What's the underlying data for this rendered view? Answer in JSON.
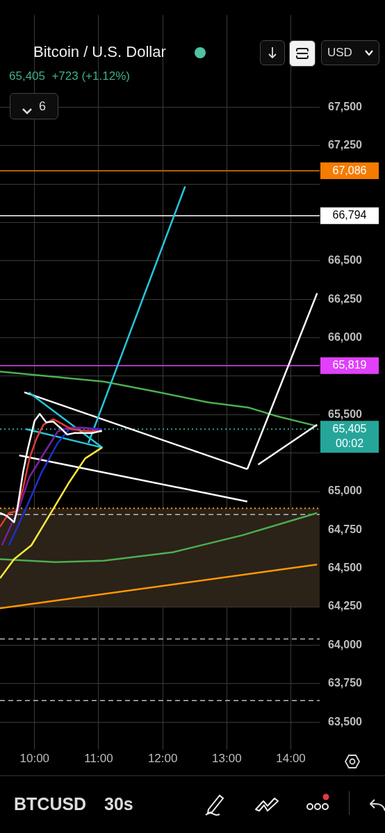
{
  "chart_data": {
    "type": "line",
    "title": "Bitcoin / U.S. Dollar",
    "subtitle": "65,405  +723 (+1.12%)",
    "xlim": [
      9.46,
      14.45
    ],
    "ylim": [
      63320,
      68100
    ],
    "xticks": [
      {
        "value": 10,
        "label": "10:00"
      },
      {
        "value": 11,
        "label": "11:00"
      },
      {
        "value": 12,
        "label": "12:00"
      },
      {
        "value": 13,
        "label": "13:00"
      },
      {
        "value": 14,
        "label": "14:00"
      }
    ],
    "yticks": [
      {
        "value": 63500,
        "label": "63,500"
      },
      {
        "value": 63750,
        "label": "63,750"
      },
      {
        "value": 64000,
        "label": "64,000"
      },
      {
        "value": 64250,
        "label": "64,250"
      },
      {
        "value": 64500,
        "label": "64,500"
      },
      {
        "value": 64750,
        "label": "64,750"
      },
      {
        "value": 65000,
        "label": "65,000"
      },
      {
        "value": 65250,
        "label": null
      },
      {
        "value": 65500,
        "label": "65,500"
      },
      {
        "value": 65750,
        "label": null
      },
      {
        "value": 66000,
        "label": "66,000"
      },
      {
        "value": 66250,
        "label": "66,250"
      },
      {
        "value": 66500,
        "label": "66,500"
      },
      {
        "value": 66750,
        "label": null
      },
      {
        "value": 67000,
        "label": null
      },
      {
        "value": 67250,
        "label": "67,250"
      },
      {
        "value": 67500,
        "label": "67,500"
      }
    ],
    "grid": true,
    "legend": false,
    "marker": "none",
    "series": [
      {
        "type": "line",
        "color": "#ffffff",
        "x": [
          9.46,
          9.57,
          9.68,
          9.73,
          9.82,
          9.89,
          10.0,
          10.08,
          10.18,
          10.29,
          10.4,
          10.51,
          10.62,
          10.76,
          10.9,
          11.05
        ],
        "values": [
          64860,
          64840,
          64800,
          64885,
          65125,
          65270,
          65460,
          65505,
          65450,
          65455,
          65415,
          65370,
          65380,
          65380,
          65380,
          65395
        ]
      },
      {
        "type": "line",
        "color": "#e53935",
        "x": [
          9.46,
          9.6,
          9.71,
          9.82,
          9.92,
          10.03,
          10.14,
          10.29,
          10.43,
          10.57,
          10.76,
          11.05
        ],
        "values": [
          64770,
          64860,
          64870,
          65020,
          65215,
          65345,
          65435,
          65470,
          65440,
          65405,
          65395,
          65390
        ]
      },
      {
        "type": "line",
        "color": "#7b1fa2",
        "x": [
          9.49,
          9.75,
          9.92,
          10.18,
          10.36,
          10.54,
          10.76,
          11.05
        ],
        "values": [
          64650,
          64885,
          65095,
          65270,
          65390,
          65415,
          65415,
          65395
        ]
      },
      {
        "type": "line",
        "color": "#1e2fd0",
        "x": [
          9.6,
          9.86,
          10.11,
          10.36,
          10.54,
          10.76,
          11.05
        ],
        "values": [
          64650,
          64885,
          65125,
          65315,
          65405,
          65415,
          65405
        ]
      },
      {
        "type": "line",
        "color": "#ffeb3b",
        "x": [
          9.46,
          9.68,
          9.95,
          10.29,
          10.54,
          10.79,
          11.05
        ],
        "values": [
          64435,
          64560,
          64650,
          64885,
          65060,
          65215,
          65285
        ]
      },
      {
        "type": "line",
        "color": "#26c6da",
        "x": [
          10.84,
          12.35
        ],
        "values": [
          65315,
          66985
        ]
      },
      {
        "type": "line",
        "color": "#26c6da",
        "x": [
          9.91,
          11.06
        ],
        "values": [
          65645,
          65285
        ]
      },
      {
        "type": "line",
        "color": "#26c6da",
        "x": [
          9.87,
          11.06
        ],
        "values": [
          65405,
          65285
        ]
      },
      {
        "type": "line",
        "color": "#ffffff",
        "x": [
          9.84,
          13.32
        ],
        "values": [
          65645,
          65145
        ]
      },
      {
        "type": "line",
        "color": "#ffffff",
        "x": [
          9.76,
          13.32
        ],
        "values": [
          65235,
          64935
        ]
      },
      {
        "type": "line",
        "color": "#ffffff",
        "x": [
          13.32,
          14.41
        ],
        "values": [
          65145,
          66290
        ]
      },
      {
        "type": "line",
        "color": "#ffffff",
        "x": [
          13.49,
          14.41
        ],
        "values": [
          65175,
          65435
        ]
      },
      {
        "type": "line",
        "color": "#4caf50",
        "x": [
          9.46,
          11.08,
          11.95,
          12.7,
          13.35,
          13.78,
          14.41
        ],
        "values": [
          65780,
          65715,
          65645,
          65580,
          65545,
          65490,
          65425
        ]
      },
      {
        "type": "line",
        "color": "#4caf50",
        "x": [
          9.46,
          10.32,
          11.08,
          12.16,
          13.24,
          14.41
        ],
        "values": [
          64560,
          64540,
          64550,
          64605,
          64715,
          64860
        ]
      },
      {
        "type": "line",
        "color": "#ff9800",
        "x": [
          9.46,
          14.41
        ],
        "values": [
          64240,
          64525
        ]
      }
    ],
    "ref_lines": [
      {
        "axis": "y",
        "value": 67086,
        "label": "67,086",
        "color": "#f57c00",
        "line_style": "solid"
      },
      {
        "axis": "y",
        "value": 66794,
        "label": "66,794",
        "color": "#ffffff",
        "line_style": "solid"
      },
      {
        "axis": "y",
        "value": 65819,
        "label": "65,819",
        "color": "#e040fb",
        "line_style": "solid"
      },
      {
        "axis": "y",
        "value": 65405,
        "label": "65,405",
        "color": "#26a69a",
        "line_style": "dotted"
      },
      {
        "axis": "y",
        "value": 64890,
        "color": "#ff9800",
        "line_style": "dotted"
      },
      {
        "axis": "y",
        "value": 64850,
        "color": "#bdbdbd",
        "line_style": "dashed"
      },
      {
        "axis": "y",
        "value": 64040,
        "color": "#bdbdbd",
        "line_style": "dashed"
      },
      {
        "axis": "y",
        "value": 63640,
        "color": "#bdbdbd",
        "line_style": "dashed"
      }
    ],
    "bands": [
      {
        "axis": "y",
        "from": 64250,
        "to": 64890,
        "color": "#2b2218"
      }
    ],
    "annotations": [
      "6",
      "USD",
      "BTCUSD",
      "30s",
      "00:02"
    ]
  }
}
